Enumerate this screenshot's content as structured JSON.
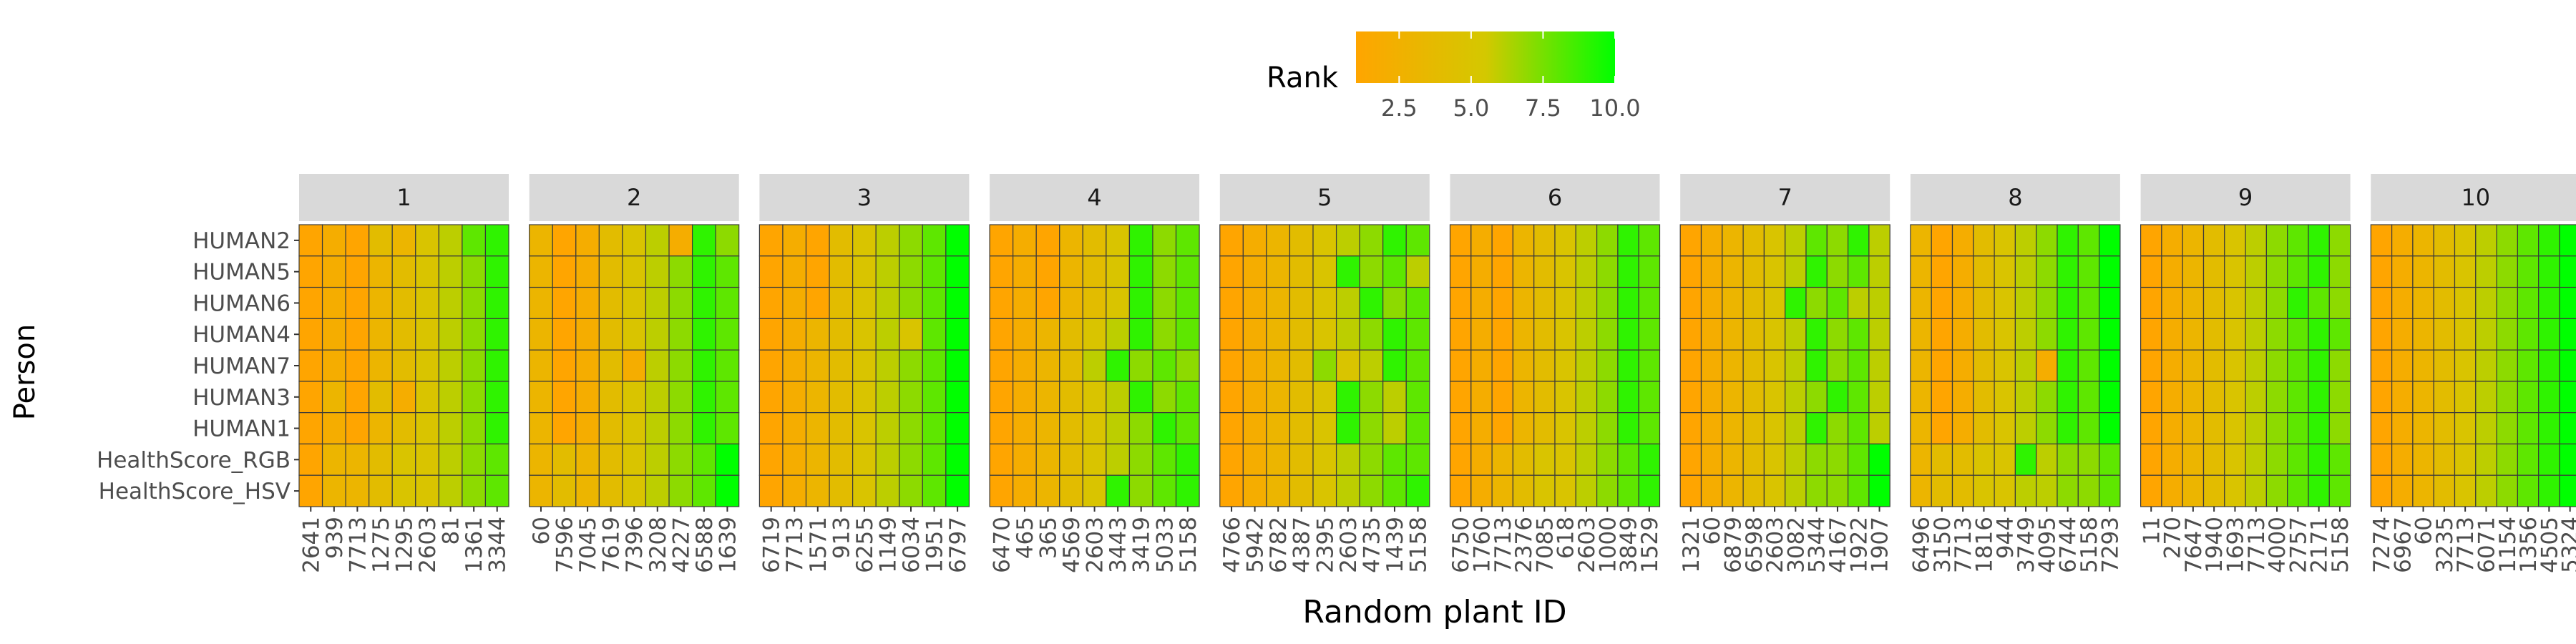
{
  "chart_data": {
    "type": "heatmap",
    "xlabel": "Random plant ID",
    "ylabel": "Person",
    "legend": {
      "title": "Rank",
      "placement": "top",
      "range": [
        1,
        10
      ],
      "ticks": [
        "2.5",
        "5.0",
        "7.5",
        "10.0"
      ],
      "tick_values": [
        2.5,
        5.0,
        7.5,
        10.0
      ],
      "low_color": "#ffa500",
      "mid_color": "#d4c800",
      "high_color": "#00ff00"
    },
    "rows": [
      "HUMAN2",
      "HUMAN5",
      "HUMAN6",
      "HUMAN4",
      "HUMAN7",
      "HUMAN3",
      "HUMAN1",
      "HealthScore_RGB",
      "HealthScore_HSV"
    ],
    "facets": [
      {
        "label": "1",
        "x": [
          "2641",
          "939",
          "7713",
          "1275",
          "1295",
          "2603",
          "81",
          "1361",
          "3344"
        ],
        "z": [
          [
            1,
            2,
            1,
            4,
            3,
            5,
            6,
            8,
            9
          ],
          [
            1,
            2,
            1,
            3,
            4,
            5,
            6,
            7,
            9
          ],
          [
            1,
            2,
            1,
            3,
            4,
            5,
            6,
            7,
            9
          ],
          [
            1,
            2,
            1,
            3,
            4,
            5,
            6,
            7,
            9
          ],
          [
            1,
            2,
            1,
            3,
            4,
            5,
            6,
            7,
            9
          ],
          [
            1,
            3,
            1,
            4,
            2,
            5,
            6,
            7,
            9
          ],
          [
            1,
            2,
            1,
            3,
            4,
            5,
            6,
            7,
            9
          ],
          [
            1,
            3,
            3,
            4,
            5,
            5,
            6,
            7,
            8
          ],
          [
            1,
            3,
            3,
            4,
            5,
            5,
            6,
            7,
            8
          ]
        ]
      },
      {
        "label": "2",
        "x": [
          "60",
          "7596",
          "7045",
          "7619",
          "7396",
          "3208",
          "4227",
          "6588",
          "1639"
        ],
        "z": [
          [
            3,
            1,
            2,
            4,
            5,
            6,
            2,
            9,
            7
          ],
          [
            3,
            1,
            2,
            4,
            5,
            6,
            7,
            9,
            8
          ],
          [
            3,
            1,
            2,
            4,
            5,
            6,
            7,
            9,
            8
          ],
          [
            3,
            1,
            2,
            4,
            5,
            6,
            7,
            9,
            8
          ],
          [
            3,
            1,
            2,
            4,
            2,
            6,
            7,
            9,
            8
          ],
          [
            3,
            1,
            2,
            4,
            5,
            6,
            7,
            9,
            8
          ],
          [
            3,
            1,
            2,
            4,
            5,
            6,
            7,
            9,
            8
          ],
          [
            3,
            4,
            3,
            4,
            5,
            6,
            7,
            8,
            10
          ],
          [
            3,
            4,
            3,
            4,
            5,
            6,
            7,
            8,
            10
          ]
        ]
      },
      {
        "label": "3",
        "x": [
          "6719",
          "7713",
          "1571",
          "913",
          "6255",
          "1149",
          "6034",
          "1951",
          "6797"
        ],
        "z": [
          [
            1,
            2,
            1,
            4,
            5,
            6,
            7,
            8,
            10
          ],
          [
            1,
            2,
            1,
            4,
            5,
            6,
            7,
            8,
            10
          ],
          [
            1,
            2,
            1,
            4,
            5,
            6,
            7,
            8,
            10
          ],
          [
            1,
            2,
            3,
            4,
            5,
            6,
            5,
            8,
            10
          ],
          [
            1,
            2,
            3,
            4,
            5,
            6,
            7,
            8,
            10
          ],
          [
            1,
            2,
            3,
            4,
            5,
            6,
            7,
            8,
            10
          ],
          [
            1,
            2,
            3,
            4,
            5,
            6,
            7,
            8,
            10
          ],
          [
            1,
            2,
            3,
            4,
            5,
            6,
            7,
            8,
            10
          ],
          [
            1,
            2,
            3,
            4,
            5,
            6,
            7,
            8,
            10
          ]
        ]
      },
      {
        "label": "4",
        "x": [
          "6470",
          "465",
          "365",
          "4569",
          "2603",
          "3443",
          "3419",
          "5033",
          "5158"
        ],
        "z": [
          [
            1,
            2,
            1,
            3,
            4,
            5,
            9,
            7,
            8
          ],
          [
            1,
            2,
            1,
            3,
            4,
            5,
            9,
            7,
            8
          ],
          [
            1,
            2,
            1,
            3,
            4,
            5,
            9,
            7,
            8
          ],
          [
            1,
            2,
            3,
            4,
            5,
            6,
            9,
            7,
            8
          ],
          [
            1,
            2,
            3,
            4,
            6,
            9,
            7,
            8,
            7
          ],
          [
            1,
            2,
            3,
            4,
            5,
            6,
            9,
            7,
            8
          ],
          [
            1,
            2,
            3,
            4,
            5,
            6,
            7,
            9,
            8
          ],
          [
            1,
            2,
            3,
            4,
            5,
            6,
            7,
            8,
            9
          ],
          [
            1,
            2,
            3,
            4,
            5,
            9,
            7,
            8,
            9
          ]
        ]
      },
      {
        "label": "5",
        "x": [
          "4766",
          "5942",
          "6782",
          "4387",
          "2395",
          "2603",
          "4735",
          "1439",
          "5158"
        ],
        "z": [
          [
            1,
            2,
            3,
            4,
            5,
            6,
            7,
            9,
            8
          ],
          [
            1,
            2,
            3,
            4,
            5,
            9,
            7,
            8,
            6
          ],
          [
            1,
            2,
            3,
            4,
            5,
            6,
            9,
            7,
            8
          ],
          [
            1,
            2,
            3,
            4,
            5,
            6,
            7,
            9,
            8
          ],
          [
            1,
            2,
            3,
            4,
            7,
            5,
            6,
            9,
            8
          ],
          [
            1,
            2,
            3,
            4,
            5,
            9,
            7,
            6,
            8
          ],
          [
            1,
            2,
            3,
            4,
            5,
            9,
            7,
            6,
            8
          ],
          [
            1,
            2,
            3,
            4,
            5,
            6,
            7,
            8,
            8
          ],
          [
            1,
            2,
            3,
            4,
            5,
            6,
            7,
            8,
            9
          ]
        ]
      },
      {
        "label": "6",
        "x": [
          "6750",
          "1760",
          "7713",
          "2376",
          "7085",
          "618",
          "2603",
          "1000",
          "3849",
          "1529"
        ],
        "z": [
          [
            1,
            2,
            1,
            3,
            4,
            5,
            6,
            7,
            9,
            8
          ],
          [
            1,
            2,
            1,
            3,
            4,
            5,
            6,
            7,
            9,
            8
          ],
          [
            1,
            2,
            1,
            3,
            4,
            5,
            6,
            7,
            9,
            8
          ],
          [
            1,
            2,
            1,
            3,
            4,
            5,
            6,
            7,
            9,
            8
          ],
          [
            1,
            2,
            1,
            3,
            4,
            5,
            6,
            7,
            9,
            8
          ],
          [
            1,
            2,
            1,
            3,
            4,
            5,
            6,
            7,
            9,
            8
          ],
          [
            1,
            2,
            1,
            3,
            4,
            5,
            6,
            7,
            9,
            8
          ],
          [
            1,
            2,
            3,
            4,
            5,
            5,
            6,
            7,
            8,
            9
          ],
          [
            1,
            2,
            3,
            4,
            5,
            5,
            6,
            7,
            8,
            9
          ]
        ]
      },
      {
        "label": "7",
        "x": [
          "1321",
          "60",
          "6879",
          "6598",
          "2603",
          "3082",
          "5344",
          "4167",
          "1922",
          "1907"
        ],
        "z": [
          [
            1,
            2,
            3,
            4,
            5,
            6,
            8,
            7,
            9,
            6
          ],
          [
            1,
            2,
            3,
            4,
            5,
            6,
            9,
            7,
            8,
            6
          ],
          [
            1,
            2,
            3,
            4,
            5,
            9,
            7,
            8,
            6,
            6
          ],
          [
            1,
            2,
            3,
            4,
            5,
            6,
            9,
            7,
            8,
            6
          ],
          [
            1,
            2,
            3,
            4,
            5,
            6,
            9,
            7,
            8,
            6
          ],
          [
            1,
            2,
            3,
            4,
            5,
            6,
            7,
            9,
            8,
            6
          ],
          [
            1,
            2,
            3,
            4,
            5,
            6,
            9,
            7,
            8,
            6
          ],
          [
            1,
            2,
            3,
            4,
            5,
            6,
            7,
            7,
            8,
            10
          ],
          [
            1,
            2,
            3,
            4,
            5,
            6,
            7,
            7,
            8,
            10
          ]
        ]
      },
      {
        "label": "8",
        "x": [
          "6496",
          "3150",
          "7713",
          "1816",
          "944",
          "3749",
          "4095",
          "6744",
          "5158",
          "7293"
        ],
        "z": [
          [
            3,
            1,
            2,
            4,
            5,
            6,
            7,
            9,
            8,
            10
          ],
          [
            3,
            1,
            2,
            4,
            5,
            6,
            7,
            9,
            8,
            10
          ],
          [
            3,
            1,
            2,
            4,
            5,
            6,
            7,
            9,
            8,
            10
          ],
          [
            3,
            1,
            2,
            4,
            5,
            6,
            7,
            9,
            8,
            10
          ],
          [
            3,
            1,
            2,
            4,
            5,
            6,
            2,
            9,
            8,
            10
          ],
          [
            3,
            1,
            2,
            4,
            5,
            6,
            7,
            9,
            8,
            10
          ],
          [
            3,
            1,
            2,
            4,
            5,
            6,
            7,
            9,
            8,
            10
          ],
          [
            3,
            4,
            4,
            5,
            5,
            9,
            6,
            7,
            7,
            8
          ],
          [
            3,
            4,
            4,
            5,
            5,
            6,
            6,
            7,
            7,
            8
          ]
        ]
      },
      {
        "label": "9",
        "x": [
          "11",
          "270",
          "7647",
          "1940",
          "1693",
          "7713",
          "4000",
          "2757",
          "2171",
          "5158"
        ],
        "z": [
          [
            1,
            2,
            3,
            4,
            5,
            6,
            7,
            8,
            9,
            7
          ],
          [
            1,
            2,
            3,
            4,
            5,
            6,
            7,
            8,
            9,
            7
          ],
          [
            1,
            2,
            3,
            4,
            5,
            6,
            7,
            9,
            8,
            7
          ],
          [
            1,
            2,
            3,
            4,
            5,
            6,
            7,
            8,
            9,
            8
          ],
          [
            1,
            2,
            3,
            4,
            5,
            6,
            7,
            8,
            9,
            7
          ],
          [
            1,
            2,
            3,
            4,
            5,
            6,
            7,
            8,
            9,
            7
          ],
          [
            1,
            2,
            3,
            4,
            5,
            6,
            7,
            8,
            9,
            7
          ],
          [
            1,
            2,
            3,
            4,
            5,
            6,
            7,
            8,
            9,
            8
          ],
          [
            1,
            2,
            3,
            4,
            5,
            6,
            7,
            8,
            9,
            8
          ]
        ]
      },
      {
        "label": "10",
        "x": [
          "7274",
          "6967",
          "60",
          "3235",
          "7713",
          "6071",
          "1154",
          "1356",
          "4505",
          "5324"
        ],
        "z": [
          [
            1,
            2,
            3,
            4,
            5,
            6,
            7,
            8,
            9,
            10
          ],
          [
            1,
            2,
            3,
            4,
            5,
            6,
            7,
            8,
            9,
            10
          ],
          [
            1,
            2,
            3,
            4,
            5,
            6,
            7,
            8,
            9,
            10
          ],
          [
            1,
            2,
            3,
            4,
            5,
            6,
            7,
            8,
            9,
            10
          ],
          [
            1,
            2,
            3,
            4,
            5,
            6,
            7,
            8,
            9,
            10
          ],
          [
            1,
            2,
            3,
            4,
            5,
            6,
            7,
            8,
            9,
            10
          ],
          [
            1,
            2,
            3,
            4,
            5,
            6,
            7,
            8,
            9,
            10
          ],
          [
            1,
            2,
            3,
            4,
            5,
            6,
            7,
            8,
            9,
            10
          ],
          [
            1,
            2,
            3,
            4,
            5,
            6,
            7,
            8,
            9,
            10
          ]
        ]
      }
    ]
  }
}
